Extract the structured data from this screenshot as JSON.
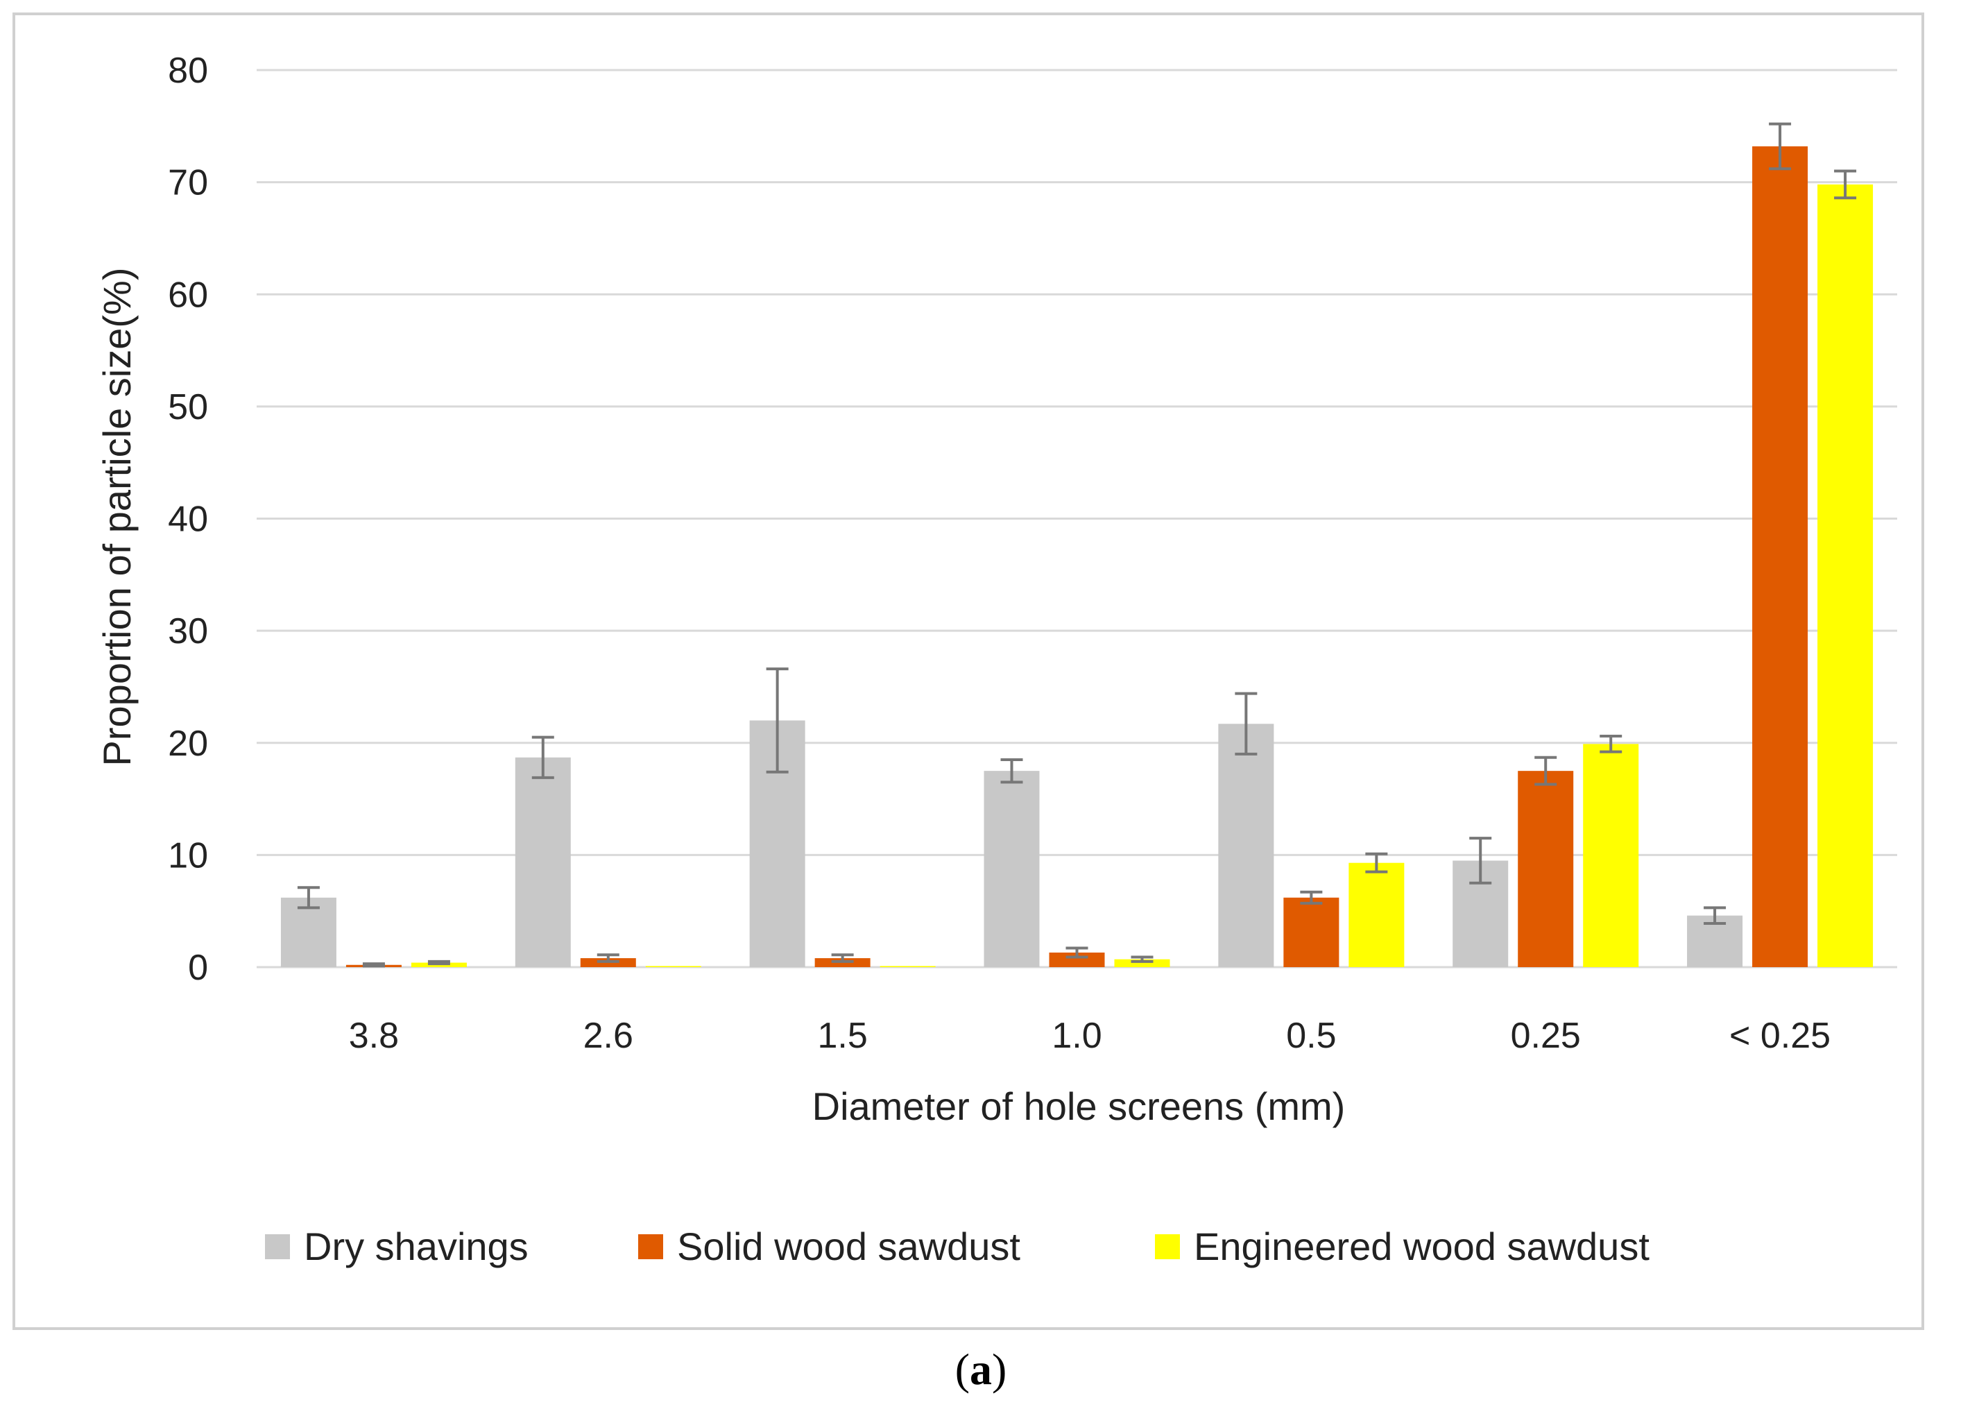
{
  "chart_data": {
    "type": "bar",
    "title": "",
    "xlabel": "Diameter of hole screens (mm)",
    "ylabel": "Proportion of particle size(%)",
    "ylim": [
      0,
      80
    ],
    "yticks": [
      0,
      10,
      20,
      30,
      40,
      50,
      60,
      70,
      80
    ],
    "grid": true,
    "legend_position": "bottom",
    "categories": [
      "3.8",
      "2.6",
      "1.5",
      "1.0",
      "0.5",
      "0.25",
      "< 0.25"
    ],
    "series": [
      {
        "name": "Dry shavings",
        "color": "#c8c8c8",
        "values": [
          6.2,
          18.7,
          22.0,
          17.5,
          21.7,
          9.5,
          4.6
        ],
        "errors": [
          0.9,
          1.8,
          4.6,
          1.0,
          2.7,
          2.0,
          0.7
        ]
      },
      {
        "name": "Solid wood sawdust",
        "color": "#e05a00",
        "values": [
          0.2,
          0.8,
          0.8,
          1.3,
          6.2,
          17.5,
          73.2
        ],
        "errors": [
          0.1,
          0.3,
          0.3,
          0.4,
          0.5,
          1.2,
          2.0
        ]
      },
      {
        "name": "Engineered wood sawdust",
        "color": "#ffff00",
        "values": [
          0.4,
          0.1,
          0.1,
          0.7,
          9.3,
          19.9,
          69.8
        ],
        "errors": [
          0.1,
          0.0,
          0.0,
          0.2,
          0.8,
          0.7,
          1.2
        ]
      }
    ]
  },
  "caption": {
    "open": "(",
    "label": "a",
    "close": ")"
  },
  "styles": {
    "error_bar_color": "#777777",
    "grid_color": "#d9d9d9",
    "frame_color": "#d0d0d0"
  }
}
